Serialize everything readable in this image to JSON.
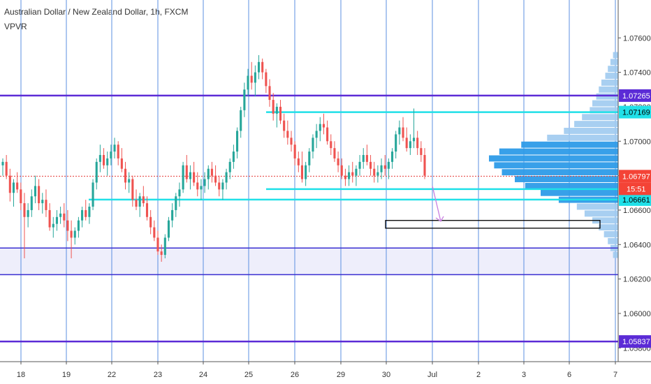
{
  "header": {
    "title": "Australian Dollar / New Zealand Dollar, 1h, FXCM",
    "indicator": "VPVR"
  },
  "colors": {
    "up": "#26a69a",
    "down": "#ef5350",
    "purple_line": "#5b2bd6",
    "blue_line": "#3a2fd1",
    "cyan_line": "#20e0e8",
    "vgrid": "#5b8fe0",
    "zone_fill": "#eeeefb",
    "volume": "#2d9be8",
    "volume_light": "#9fcaf0",
    "price_tag": "#f44336",
    "current_line": "#e53935",
    "arrow": "#c77ee0"
  },
  "chart_data": {
    "type": "candlestick",
    "x_ticks": [
      "18",
      "19",
      "22",
      "23",
      "24",
      "25",
      "26",
      "29",
      "30",
      "Jul",
      "2",
      "3",
      "6",
      "7"
    ],
    "y_ticks": [
      "1.07600",
      "1.07400",
      "1.07200",
      "1.07000",
      "1.06800",
      "1.06600",
      "1.06400",
      "1.06200",
      "1.06000",
      "1.05800"
    ],
    "ylim": [
      1.0572,
      1.0782
    ],
    "current_price": "1.06797",
    "countdown": "15:51",
    "price_labels": [
      {
        "text": "1.07265",
        "value": 1.07265,
        "color": "#5b2bd6"
      },
      {
        "text": "1.07169",
        "value": 1.07169,
        "color": "#20e0e8"
      },
      {
        "text": "1.06797",
        "value": 1.06797,
        "color": "#f44336"
      },
      {
        "text": "1.06661",
        "value": 1.06661,
        "color": "#20e0e8"
      },
      {
        "text": "1.05837",
        "value": 1.05837,
        "color": "#5b2bd6"
      }
    ],
    "horizontal_levels": [
      {
        "kind": "purple",
        "value": 1.07265
      },
      {
        "kind": "purple",
        "value": 1.05837
      },
      {
        "kind": "blue",
        "value": 1.0638
      },
      {
        "kind": "blue",
        "value": 1.06225
      },
      {
        "kind": "cyan",
        "value": 1.07169,
        "from": "25",
        "to": "7"
      },
      {
        "kind": "cyan",
        "value": 1.06722,
        "from": "25",
        "to": "7"
      },
      {
        "kind": "cyan",
        "value": 1.06661,
        "from": "19",
        "to": "7"
      }
    ],
    "demand_zone": [
      1.06225,
      1.0638
    ],
    "target_box": {
      "from": "30",
      "to": "6",
      "low": 1.06495,
      "high": 1.0654
    },
    "arrow": {
      "from_day": "30",
      "from_value": 1.0674,
      "to_value": 1.06535
    },
    "candles": [
      [
        1.0686,
        1.069,
        1.068,
        1.0688
      ],
      [
        1.0688,
        1.0692,
        1.0678,
        1.068
      ],
      [
        1.068,
        1.0684,
        1.0665,
        1.067
      ],
      [
        1.067,
        1.0678,
        1.0662,
        1.0676
      ],
      [
        1.0676,
        1.0682,
        1.067,
        1.0672
      ],
      [
        1.0672,
        1.0676,
        1.066,
        1.0664
      ],
      [
        1.0664,
        1.067,
        1.0632,
        1.0656
      ],
      [
        1.0656,
        1.0664,
        1.065,
        1.066
      ],
      [
        1.066,
        1.0672,
        1.0656,
        1.0668
      ],
      [
        1.0668,
        1.068,
        1.0664,
        1.0674
      ],
      [
        1.0674,
        1.0678,
        1.066,
        1.0664
      ],
      [
        1.0664,
        1.067,
        1.0658,
        1.0666
      ],
      [
        1.0666,
        1.0672,
        1.0656,
        1.066
      ],
      [
        1.066,
        1.0664,
        1.0648,
        1.065
      ],
      [
        1.065,
        1.0656,
        1.0644,
        1.0652
      ],
      [
        1.0652,
        1.066,
        1.0648,
        1.0656
      ],
      [
        1.0656,
        1.0662,
        1.0652,
        1.0658
      ],
      [
        1.0658,
        1.0664,
        1.065,
        1.0654
      ],
      [
        1.0654,
        1.066,
        1.0642,
        1.0648
      ],
      [
        1.0648,
        1.0654,
        1.0632,
        1.0644
      ],
      [
        1.0644,
        1.065,
        1.064,
        1.0648
      ],
      [
        1.0648,
        1.0656,
        1.0644,
        1.0654
      ],
      [
        1.0654,
        1.0662,
        1.065,
        1.066
      ],
      [
        1.066,
        1.0666,
        1.0654,
        1.0656
      ],
      [
        1.0656,
        1.0664,
        1.0652,
        1.0662
      ],
      [
        1.0662,
        1.0678,
        1.066,
        1.0676
      ],
      [
        1.0676,
        1.069,
        1.0672,
        1.0688
      ],
      [
        1.0688,
        1.0698,
        1.0682,
        1.0692
      ],
      [
        1.0692,
        1.0696,
        1.0684,
        1.0686
      ],
      [
        1.0686,
        1.0694,
        1.068,
        1.069
      ],
      [
        1.069,
        1.0698,
        1.0686,
        1.0694
      ],
      [
        1.0694,
        1.0702,
        1.069,
        1.0698
      ],
      [
        1.0698,
        1.07,
        1.0686,
        1.069
      ],
      [
        1.069,
        1.0696,
        1.0682,
        1.0684
      ],
      [
        1.0684,
        1.0688,
        1.0672,
        1.0676
      ],
      [
        1.0676,
        1.0682,
        1.067,
        1.0678
      ],
      [
        1.0678,
        1.068,
        1.0662,
        1.0666
      ],
      [
        1.0666,
        1.0672,
        1.066,
        1.0662
      ],
      [
        1.0662,
        1.067,
        1.0656,
        1.0668
      ],
      [
        1.0668,
        1.0674,
        1.0662,
        1.0664
      ],
      [
        1.0664,
        1.0668,
        1.0654,
        1.0656
      ],
      [
        1.0656,
        1.066,
        1.0646,
        1.065
      ],
      [
        1.065,
        1.0654,
        1.0642,
        1.0644
      ],
      [
        1.0644,
        1.0648,
        1.0634,
        1.0636
      ],
      [
        1.0636,
        1.064,
        1.063,
        1.0634
      ],
      [
        1.0634,
        1.0646,
        1.0632,
        1.0644
      ],
      [
        1.0644,
        1.0656,
        1.0642,
        1.0654
      ],
      [
        1.0654,
        1.0664,
        1.065,
        1.066
      ],
      [
        1.066,
        1.067,
        1.0656,
        1.0668
      ],
      [
        1.0668,
        1.0676,
        1.0662,
        1.0672
      ],
      [
        1.0672,
        1.0688,
        1.067,
        1.0686
      ],
      [
        1.0686,
        1.0692,
        1.0676,
        1.0678
      ],
      [
        1.0678,
        1.0686,
        1.0672,
        1.0682
      ],
      [
        1.0682,
        1.0688,
        1.0674,
        1.0676
      ],
      [
        1.0676,
        1.0682,
        1.0668,
        1.0672
      ],
      [
        1.0672,
        1.0678,
        1.0666,
        1.0674
      ],
      [
        1.0674,
        1.0682,
        1.067,
        1.0678
      ],
      [
        1.0678,
        1.0686,
        1.0672,
        1.0684
      ],
      [
        1.0684,
        1.0688,
        1.0676,
        1.068
      ],
      [
        1.068,
        1.0686,
        1.0674,
        1.0676
      ],
      [
        1.0676,
        1.068,
        1.0668,
        1.0672
      ],
      [
        1.0672,
        1.0678,
        1.0666,
        1.0676
      ],
      [
        1.0676,
        1.0684,
        1.0672,
        1.0682
      ],
      [
        1.0682,
        1.069,
        1.0678,
        1.0688
      ],
      [
        1.0688,
        1.0698,
        1.0684,
        1.0694
      ],
      [
        1.0694,
        1.0708,
        1.069,
        1.0706
      ],
      [
        1.0706,
        1.072,
        1.0702,
        1.0718
      ],
      [
        1.0718,
        1.0734,
        1.0714,
        1.073
      ],
      [
        1.073,
        1.0742,
        1.0726,
        1.0738
      ],
      [
        1.0738,
        1.0746,
        1.073,
        1.0734
      ],
      [
        1.0734,
        1.0744,
        1.0726,
        1.074
      ],
      [
        1.074,
        1.075,
        1.0736,
        1.0746
      ],
      [
        1.0746,
        1.0748,
        1.0736,
        1.074
      ],
      [
        1.074,
        1.0742,
        1.0728,
        1.0732
      ],
      [
        1.0732,
        1.0736,
        1.072,
        1.0724
      ],
      [
        1.0724,
        1.0728,
        1.0712,
        1.0716
      ],
      [
        1.0716,
        1.0722,
        1.0708,
        1.072
      ],
      [
        1.072,
        1.0724,
        1.071,
        1.0712
      ],
      [
        1.0712,
        1.0716,
        1.0702,
        1.0706
      ],
      [
        1.0706,
        1.0712,
        1.0698,
        1.0702
      ],
      [
        1.0702,
        1.0706,
        1.0694,
        1.0698
      ],
      [
        1.0698,
        1.07,
        1.0686,
        1.069
      ],
      [
        1.069,
        1.0694,
        1.0682,
        1.0686
      ],
      [
        1.0686,
        1.0694,
        1.0676,
        1.0678
      ],
      [
        1.0678,
        1.0688,
        1.0674,
        1.0686
      ],
      [
        1.0686,
        1.0696,
        1.0682,
        1.0694
      ],
      [
        1.0694,
        1.0704,
        1.069,
        1.0702
      ],
      [
        1.0702,
        1.071,
        1.0696,
        1.0706
      ],
      [
        1.0706,
        1.0714,
        1.07,
        1.071
      ],
      [
        1.071,
        1.0716,
        1.0704,
        1.0708
      ],
      [
        1.0708,
        1.0712,
        1.0698,
        1.07
      ],
      [
        1.07,
        1.0704,
        1.0692,
        1.0696
      ],
      [
        1.0696,
        1.07,
        1.0688,
        1.069
      ],
      [
        1.069,
        1.0694,
        1.0682,
        1.0686
      ],
      [
        1.0686,
        1.069,
        1.0678,
        1.068
      ],
      [
        1.068,
        1.0684,
        1.0674,
        1.0678
      ],
      [
        1.0678,
        1.0686,
        1.0674,
        1.0682
      ],
      [
        1.0682,
        1.0688,
        1.0676,
        1.068
      ],
      [
        1.068,
        1.0686,
        1.0674,
        1.0684
      ],
      [
        1.0684,
        1.0692,
        1.068,
        1.0688
      ],
      [
        1.0688,
        1.0696,
        1.0684,
        1.0692
      ],
      [
        1.0692,
        1.0698,
        1.0686,
        1.0688
      ],
      [
        1.0688,
        1.0692,
        1.068,
        1.0684
      ],
      [
        1.0684,
        1.0688,
        1.0676,
        1.068
      ],
      [
        1.068,
        1.0686,
        1.0676,
        1.0682
      ],
      [
        1.0682,
        1.069,
        1.0678,
        1.0686
      ],
      [
        1.0686,
        1.0692,
        1.068,
        1.0684
      ],
      [
        1.0684,
        1.069,
        1.0678,
        1.0688
      ],
      [
        1.0688,
        1.0696,
        1.0684,
        1.0694
      ],
      [
        1.0694,
        1.0706,
        1.069,
        1.0704
      ],
      [
        1.0704,
        1.0712,
        1.0698,
        1.0708
      ],
      [
        1.0708,
        1.0714,
        1.07,
        1.0702
      ],
      [
        1.0702,
        1.0708,
        1.0694,
        1.0696
      ],
      [
        1.0696,
        1.0704,
        1.0692,
        1.07
      ],
      [
        1.07,
        1.0719,
        1.0696,
        1.0702
      ],
      [
        1.0702,
        1.0706,
        1.0692,
        1.0696
      ],
      [
        1.0696,
        1.07,
        1.0688,
        1.0692
      ],
      [
        1.0692,
        1.0696,
        1.0678,
        1.068
      ]
    ]
  },
  "volume_profile": {
    "bins": [
      {
        "price": 1.075,
        "vol": 0.04
      },
      {
        "price": 1.0746,
        "vol": 0.06
      },
      {
        "price": 1.0742,
        "vol": 0.08
      },
      {
        "price": 1.0738,
        "vol": 0.1
      },
      {
        "price": 1.0734,
        "vol": 0.13
      },
      {
        "price": 1.073,
        "vol": 0.15
      },
      {
        "price": 1.0726,
        "vol": 0.17
      },
      {
        "price": 1.0722,
        "vol": 0.2
      },
      {
        "price": 1.0718,
        "vol": 0.22
      },
      {
        "price": 1.0714,
        "vol": 0.28
      },
      {
        "price": 1.071,
        "vol": 0.34
      },
      {
        "price": 1.0706,
        "vol": 0.42
      },
      {
        "price": 1.0702,
        "vol": 0.55
      },
      {
        "price": 1.0698,
        "vol": 0.75
      },
      {
        "price": 1.0694,
        "vol": 0.92
      },
      {
        "price": 1.069,
        "vol": 1.0
      },
      {
        "price": 1.0686,
        "vol": 0.96
      },
      {
        "price": 1.0682,
        "vol": 0.9
      },
      {
        "price": 1.0678,
        "vol": 0.8
      },
      {
        "price": 1.0674,
        "vol": 0.72
      },
      {
        "price": 1.067,
        "vol": 0.6
      },
      {
        "price": 1.0666,
        "vol": 0.46
      },
      {
        "price": 1.0662,
        "vol": 0.32
      },
      {
        "price": 1.0658,
        "vol": 0.26
      },
      {
        "price": 1.0654,
        "vol": 0.2
      },
      {
        "price": 1.065,
        "vol": 0.15
      },
      {
        "price": 1.0646,
        "vol": 0.11
      },
      {
        "price": 1.0642,
        "vol": 0.08
      },
      {
        "price": 1.0638,
        "vol": 0.06
      },
      {
        "price": 1.0634,
        "vol": 0.04
      }
    ]
  }
}
